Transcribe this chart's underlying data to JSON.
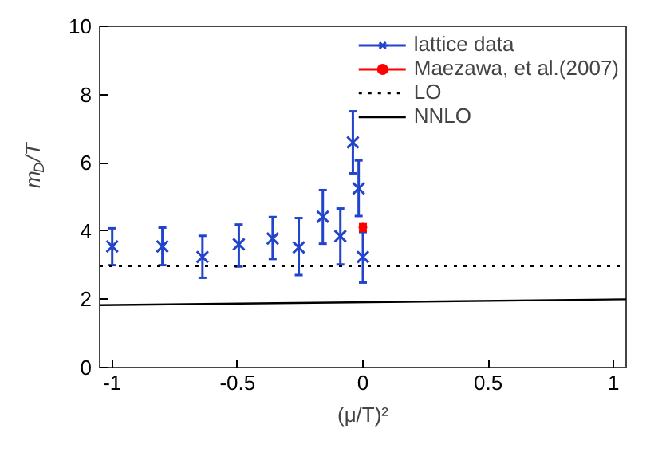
{
  "chart_data": {
    "type": "scatter",
    "xlabel": "(μ/T)²",
    "ylabel": "m$_{D}$/T",
    "xlim": [
      -1.05,
      1.05
    ],
    "ylim": [
      0,
      10
    ],
    "xticks": [
      -1,
      -0.5,
      0,
      0.5,
      1
    ],
    "yticks": [
      0,
      2,
      4,
      6,
      8,
      10
    ],
    "grid": false,
    "legend": "top right",
    "series": [
      {
        "name": "lattice data",
        "marker": "cross",
        "color": "#2244cc",
        "x": [
          -1,
          -0.8,
          -0.64,
          -0.495,
          -0.36,
          -0.256,
          -0.16,
          -0.09,
          -0.04,
          -0.017,
          0
        ],
        "values": [
          3.55,
          3.55,
          3.24,
          3.61,
          3.78,
          3.52,
          4.42,
          3.85,
          6.6,
          5.25,
          3.24
        ],
        "errors": [
          [
            3.0,
            4.08
          ],
          [
            3.0,
            4.1
          ],
          [
            2.63,
            3.86
          ],
          [
            2.96,
            4.19
          ],
          [
            3.18,
            4.41
          ],
          [
            2.71,
            4.38
          ],
          [
            3.63,
            5.2
          ],
          [
            3.02,
            4.66
          ],
          [
            5.69,
            7.51
          ],
          [
            4.44,
            6.07
          ],
          [
            2.49,
            3.97
          ]
        ]
      },
      {
        "name": "Maezawa, et al.(2007)",
        "marker": "circle",
        "color": "#ff0000",
        "x": [
          0
        ],
        "values": [
          4.11
        ],
        "errors": [
          [
            4.0,
            4.2
          ]
        ]
      },
      {
        "name": "LO",
        "type": "line",
        "line_style": "dotted",
        "color": "#000000",
        "x": [
          -1.05,
          1.05
        ],
        "values": [
          2.97,
          2.97
        ]
      },
      {
        "name": "NNLO",
        "type": "line",
        "line_style": "solid",
        "color": "#000000",
        "x": [
          -1.05,
          1.05
        ],
        "values": [
          1.83,
          2.0
        ]
      }
    ]
  }
}
